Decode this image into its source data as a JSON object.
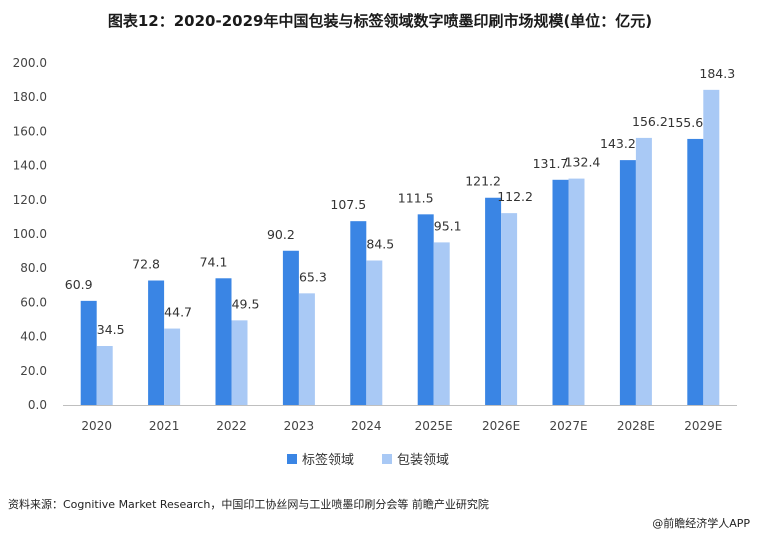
{
  "title": "图表12：2020-2029年中国包装与标签领域数字喷墨印刷市场规模(单位：亿元)",
  "source": "资料来源：Cognitive Market Research，中国印工协丝网与工业喷墨印刷分会等 前瞻产业研究院",
  "credit": "@前瞻经济学人APP",
  "colors": {
    "series1": "#3a85e4",
    "series2": "#a9c9f5"
  },
  "chart_data": {
    "type": "bar",
    "title": "图表12：2020-2029年中国包装与标签领域数字喷墨印刷市场规模(单位：亿元)",
    "categories": [
      "2020",
      "2021",
      "2022",
      "2023",
      "2024",
      "2025E",
      "2026E",
      "2027E",
      "2028E",
      "2029E"
    ],
    "series": [
      {
        "name": "标签领域",
        "values": [
          60.9,
          72.8,
          74.1,
          90.2,
          107.5,
          111.5,
          121.2,
          131.7,
          143.2,
          155.6
        ]
      },
      {
        "name": "包装领域",
        "values": [
          34.5,
          44.7,
          49.5,
          65.3,
          84.5,
          95.1,
          112.2,
          132.4,
          156.2,
          184.3
        ]
      }
    ],
    "value_labels": [
      [
        "60.9",
        "72.8",
        "74.1",
        "90.2",
        "107.5",
        "111.5",
        "121.2",
        "131.7",
        "143.2",
        "155.6"
      ],
      [
        "34.5",
        "44.7",
        "49.5",
        "65.3",
        "84.5",
        "95.1",
        "112.2",
        "132.4",
        "156.2",
        "184.3"
      ]
    ],
    "yticks": [
      "0.0",
      "20.0",
      "40.0",
      "60.0",
      "80.0",
      "100.0",
      "120.0",
      "140.0",
      "160.0",
      "180.0",
      "200.0"
    ],
    "ylim": [
      0,
      200
    ],
    "xlabel": "",
    "ylabel": "",
    "grid": false,
    "legend": "bottom-center"
  }
}
